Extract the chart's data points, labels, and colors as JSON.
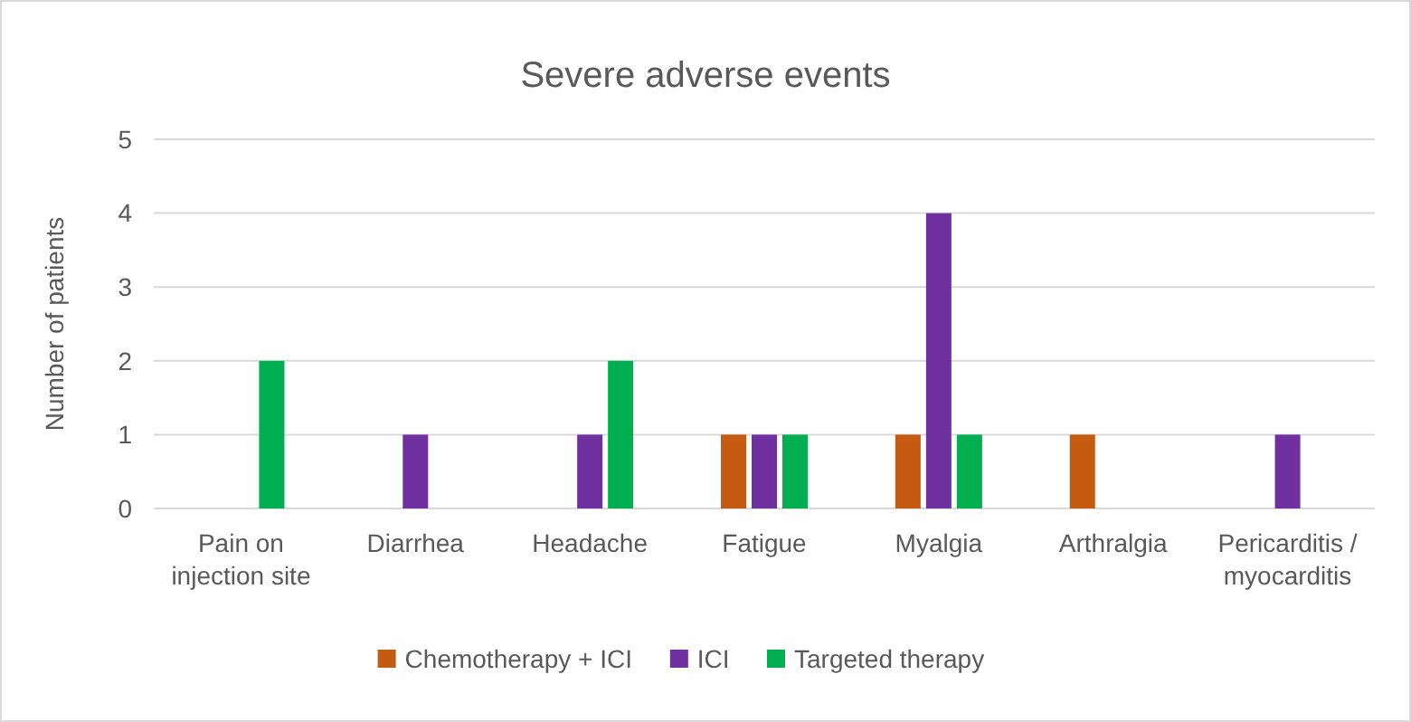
{
  "chart_data": {
    "type": "bar",
    "title": "Severe adverse events",
    "ylabel": "Number of patients",
    "categories": [
      "Pain on injection site",
      "Diarrhea",
      "Headache",
      "Fatigue",
      "Myalgia",
      "Arthralgia",
      "Pericarditis / myocarditis"
    ],
    "series": [
      {
        "name": "Chemotherapy + ICI",
        "color": "#c55a11",
        "values": [
          0,
          0,
          0,
          1,
          1,
          1,
          0
        ]
      },
      {
        "name": "ICI",
        "color": "#7030a0",
        "values": [
          0,
          1,
          1,
          1,
          4,
          0,
          1
        ]
      },
      {
        "name": "Targeted therapy",
        "color": "#00b050",
        "values": [
          2,
          0,
          2,
          1,
          1,
          0,
          0
        ]
      }
    ],
    "ylim": [
      0,
      5
    ],
    "yticks": [
      0,
      1,
      2,
      3,
      4,
      5
    ],
    "grid": "y",
    "legend": "bottom"
  }
}
